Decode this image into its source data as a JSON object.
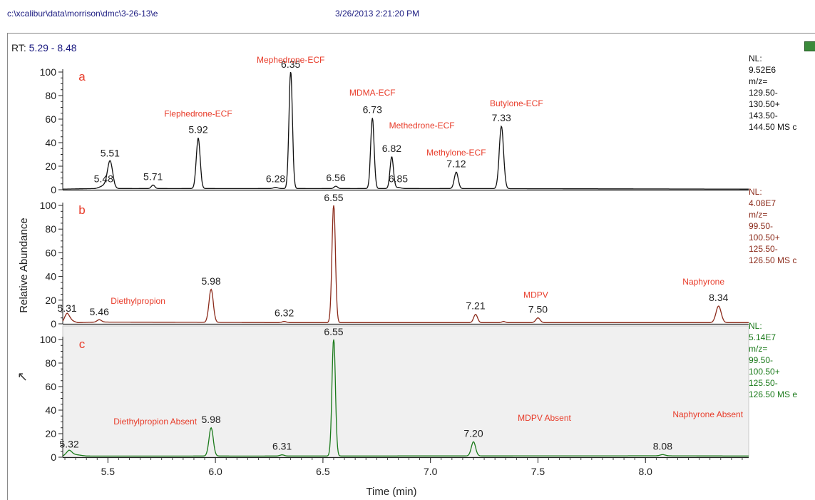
{
  "header": {
    "path": "c:\\xcalibur\\data\\morrison\\dmc\\3-26-13\\e",
    "timestamp": "3/26/2013 2:21:20 PM"
  },
  "rt_label": "RT:",
  "rt_range": "5.29 - 8.48",
  "colors": {
    "a": "#111111",
    "b": "#8b2a1a",
    "c": "#1a7a1a",
    "label_red": "#e83c2a"
  },
  "chart_data": {
    "type": "line",
    "xlabel": "Time (min)",
    "ylabel": "Relative Abundance",
    "xlim": [
      5.29,
      8.48
    ],
    "ylim": [
      0,
      100
    ],
    "x_ticks": [
      5.5,
      6.0,
      6.5,
      7.0,
      7.5,
      8.0
    ],
    "x_tick_labels": [
      "5.5",
      "6.0",
      "6.5",
      "7.0",
      "7.5",
      "8.0"
    ],
    "y_ticks": [
      0,
      20,
      40,
      60,
      80,
      100
    ],
    "y_tick_labels": [
      "0",
      "20",
      "40",
      "60",
      "80",
      "100"
    ],
    "panels": [
      {
        "id": "a",
        "label": "a",
        "nl": [
          "NL:",
          "9.52E6",
          "m/z=",
          "129.50-",
          "130.50+",
          "143.50-",
          "144.50  MS c"
        ],
        "baseline": [
          [
            5.29,
            0.5
          ],
          [
            5.44,
            1
          ],
          [
            5.48,
            2.5
          ],
          [
            5.53,
            1
          ],
          [
            5.71,
            1
          ],
          [
            6.28,
            1
          ],
          [
            6.56,
            1
          ],
          [
            6.85,
            1
          ],
          [
            7.12,
            1
          ],
          [
            8.48,
            0.5
          ]
        ],
        "peaks": [
          {
            "rt": 5.51,
            "height": 23,
            "width": 0.012,
            "label": "5.51"
          },
          {
            "rt": 5.48,
            "height": 1,
            "width": 0.015,
            "label": "5.48"
          },
          {
            "rt": 5.71,
            "height": 3,
            "width": 0.008,
            "label": "5.71"
          },
          {
            "rt": 5.92,
            "height": 43,
            "width": 0.009,
            "label": "5.92"
          },
          {
            "rt": 6.28,
            "height": 1,
            "width": 0.01,
            "label": "6.28"
          },
          {
            "rt": 6.35,
            "height": 100,
            "width": 0.008,
            "label": "6.35"
          },
          {
            "rt": 6.56,
            "height": 2,
            "width": 0.008,
            "label": "6.56"
          },
          {
            "rt": 6.73,
            "height": 60,
            "width": 0.008,
            "label": "6.73"
          },
          {
            "rt": 6.82,
            "height": 27,
            "width": 0.008,
            "label": "6.82"
          },
          {
            "rt": 6.85,
            "height": 1,
            "width": 0.012,
            "label": "6.85"
          },
          {
            "rt": 7.12,
            "height": 14,
            "width": 0.009,
            "label": "7.12"
          },
          {
            "rt": 7.33,
            "height": 53,
            "width": 0.01,
            "label": "7.33"
          }
        ],
        "annotations": [
          {
            "text": "Mephedrone-ECF",
            "x": 6.35,
            "y": 108
          },
          {
            "text": "Flephedrone-ECF",
            "x": 5.92,
            "y": 62
          },
          {
            "text": "MDMA-ECF",
            "x": 6.73,
            "y": 80
          },
          {
            "text": "Methedrone-ECF",
            "x": 6.96,
            "y": 52
          },
          {
            "text": "Methylone-ECF",
            "x": 7.12,
            "y": 29
          },
          {
            "text": "Butylone-ECF",
            "x": 7.4,
            "y": 71
          }
        ]
      },
      {
        "id": "b",
        "label": "b",
        "nl": [
          "NL:",
          "4.08E7",
          "m/z=",
          "99.50-",
          "100.50+",
          "125.50-",
          "126.50  MS c"
        ],
        "baseline": [
          [
            5.29,
            1
          ],
          [
            5.31,
            4
          ],
          [
            5.36,
            1
          ],
          [
            5.46,
            1.5
          ],
          [
            6.32,
            1
          ],
          [
            7.5,
            1
          ],
          [
            8.48,
            1
          ]
        ],
        "peaks": [
          {
            "rt": 5.31,
            "height": 5,
            "width": 0.012,
            "label": "5.31"
          },
          {
            "rt": 5.46,
            "height": 2,
            "width": 0.01,
            "label": "5.46"
          },
          {
            "rt": 5.98,
            "height": 28,
            "width": 0.01,
            "label": "5.98"
          },
          {
            "rt": 6.32,
            "height": 1,
            "width": 0.01,
            "label": "6.32"
          },
          {
            "rt": 6.55,
            "height": 100,
            "width": 0.008,
            "label": "6.55"
          },
          {
            "rt": 7.21,
            "height": 7,
            "width": 0.009,
            "label": "7.21"
          },
          {
            "rt": 7.34,
            "height": 1,
            "width": 0.008,
            "label": ""
          },
          {
            "rt": 7.5,
            "height": 4,
            "width": 0.01,
            "label": "7.50"
          },
          {
            "rt": 8.34,
            "height": 14,
            "width": 0.012,
            "label": "8.34"
          }
        ],
        "annotations": [
          {
            "text": "Diethylpropion",
            "x": 5.64,
            "y": 17
          },
          {
            "text": "MDPV",
            "x": 7.49,
            "y": 22
          },
          {
            "text": "Naphyrone",
            "x": 8.27,
            "y": 33
          }
        ]
      },
      {
        "id": "c",
        "label": "c",
        "nl": [
          "NL:",
          "5.14E7",
          "m/z=",
          "99.50-",
          "100.50+",
          "125.50-",
          "126.50  MS e"
        ],
        "baseline": [
          [
            5.29,
            1
          ],
          [
            5.32,
            3
          ],
          [
            5.36,
            2
          ],
          [
            5.4,
            1
          ],
          [
            6.31,
            1
          ],
          [
            8.08,
            1.2
          ],
          [
            8.48,
            1
          ]
        ],
        "peaks": [
          {
            "rt": 5.32,
            "height": 3,
            "width": 0.012,
            "label": "5.32"
          },
          {
            "rt": 5.98,
            "height": 24,
            "width": 0.01,
            "label": "5.98"
          },
          {
            "rt": 6.31,
            "height": 1,
            "width": 0.01,
            "label": "6.31"
          },
          {
            "rt": 6.55,
            "height": 100,
            "width": 0.008,
            "label": "6.55"
          },
          {
            "rt": 7.2,
            "height": 12,
            "width": 0.01,
            "label": "7.20"
          },
          {
            "rt": 8.08,
            "height": 1,
            "width": 0.012,
            "label": "8.08"
          }
        ],
        "annotations": [
          {
            "text": "Diethylpropion Absent",
            "x": 5.72,
            "y": 28
          },
          {
            "text": "MDPV Absent",
            "x": 7.53,
            "y": 31
          },
          {
            "text": "Naphyrone Absent",
            "x": 8.29,
            "y": 34
          }
        ]
      }
    ]
  }
}
